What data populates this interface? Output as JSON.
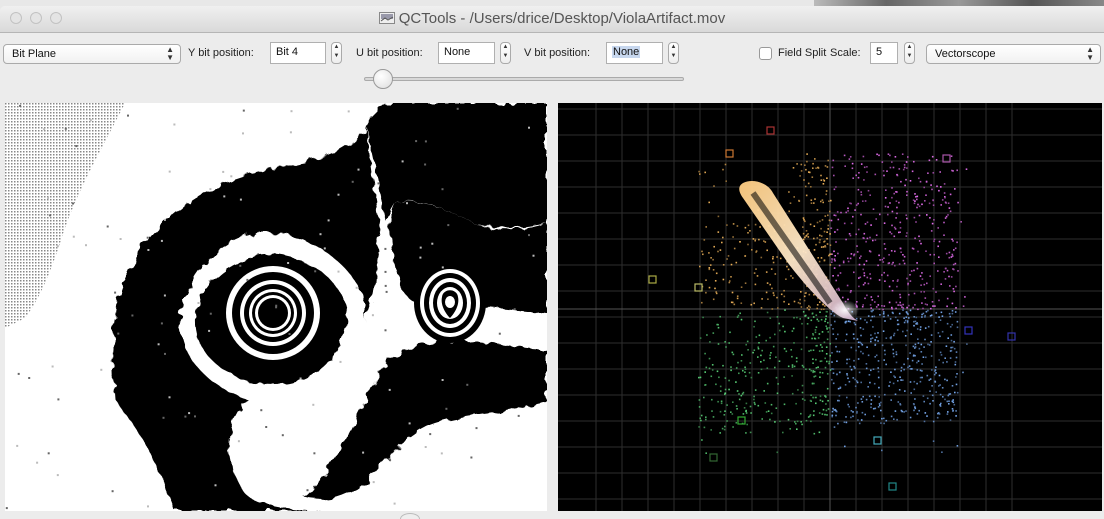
{
  "window": {
    "title": "QCTools - /Users/drice/Desktop/ViolaArtifact.mov"
  },
  "toolbar": {
    "filter_select": "Bit Plane",
    "y_bit_label": "Y bit position:",
    "y_bit_value": "Bit 4",
    "u_bit_label": "U bit position:",
    "u_bit_value": "None",
    "v_bit_label": "V bit position:",
    "v_bit_value": "None",
    "field_split_label": "Field Split",
    "field_split_checked": false,
    "scale_label": "Scale:",
    "scale_value": "5",
    "view_select": "Vectorscope",
    "slider_position": 0.03
  },
  "icons": [
    "close-icon",
    "minimize-icon",
    "zoom-icon",
    "app-icon",
    "select-arrows-icon",
    "stepper-icon",
    "checkbox-icon"
  ],
  "colors": {
    "vectorscope_background": "#000000",
    "graticule": "#2e2e2e",
    "bitplane_foreground": "#000000",
    "bitplane_background": "#ffffff"
  }
}
